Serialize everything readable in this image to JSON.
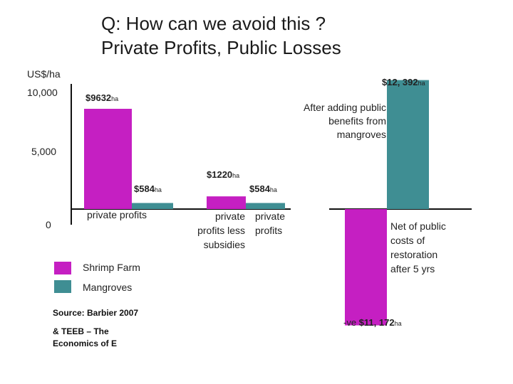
{
  "slide": {
    "title_line1": "Q: How can we avoid this ?",
    "title_line2": "Private Profits, Public Losses",
    "source_line1": "Source: Barbier 2007",
    "source_line2": "& TEEB – The",
    "source_line3": "Economics of E"
  },
  "chart_data": {
    "type": "bar",
    "ylabel": "US$/ha",
    "yticks": [
      "10,000",
      "5,000",
      "0"
    ],
    "ylim": [
      -12000,
      13000
    ],
    "colors": {
      "shrimp_farm": "#c51fc2",
      "mangroves": "#3f8e93"
    },
    "legend": [
      {
        "name": "Shrimp Farm",
        "color": "#c51fc2"
      },
      {
        "name": "Mangroves",
        "color": "#3f8e93"
      }
    ],
    "groups": [
      {
        "label": "private profits",
        "shrimp_farm": 9632,
        "mangroves": 584
      },
      {
        "label_line1": "private",
        "label_line2": "profits less",
        "label_line3": "subsidies",
        "shrimp_farm": 1220
      },
      {
        "label_line1": "private",
        "label_line2": "profits",
        "mangroves": 584
      },
      {
        "shrimp_farm_label_line1": "Net of public",
        "shrimp_farm_label_line2": "costs of",
        "shrimp_farm_label_line3": "restoration",
        "shrimp_farm_label_line4": "after 5 yrs",
        "shrimp_farm": -11172,
        "mangroves_label_line1": "After adding public",
        "mangroves_label_line2": "benefits from",
        "mangroves_label_line3": "mangroves",
        "mangroves": 12392
      }
    ],
    "data_labels": {
      "shrimp_private": "$9632",
      "mangrove_private": "$584",
      "shrimp_less_subsidies": "$1220",
      "mangrove_private2": "$584",
      "mangrove_public": "$12, 392",
      "shrimp_restoration_prefix": "-ve",
      "shrimp_restoration": "$11, 172",
      "unit": "ha"
    }
  }
}
